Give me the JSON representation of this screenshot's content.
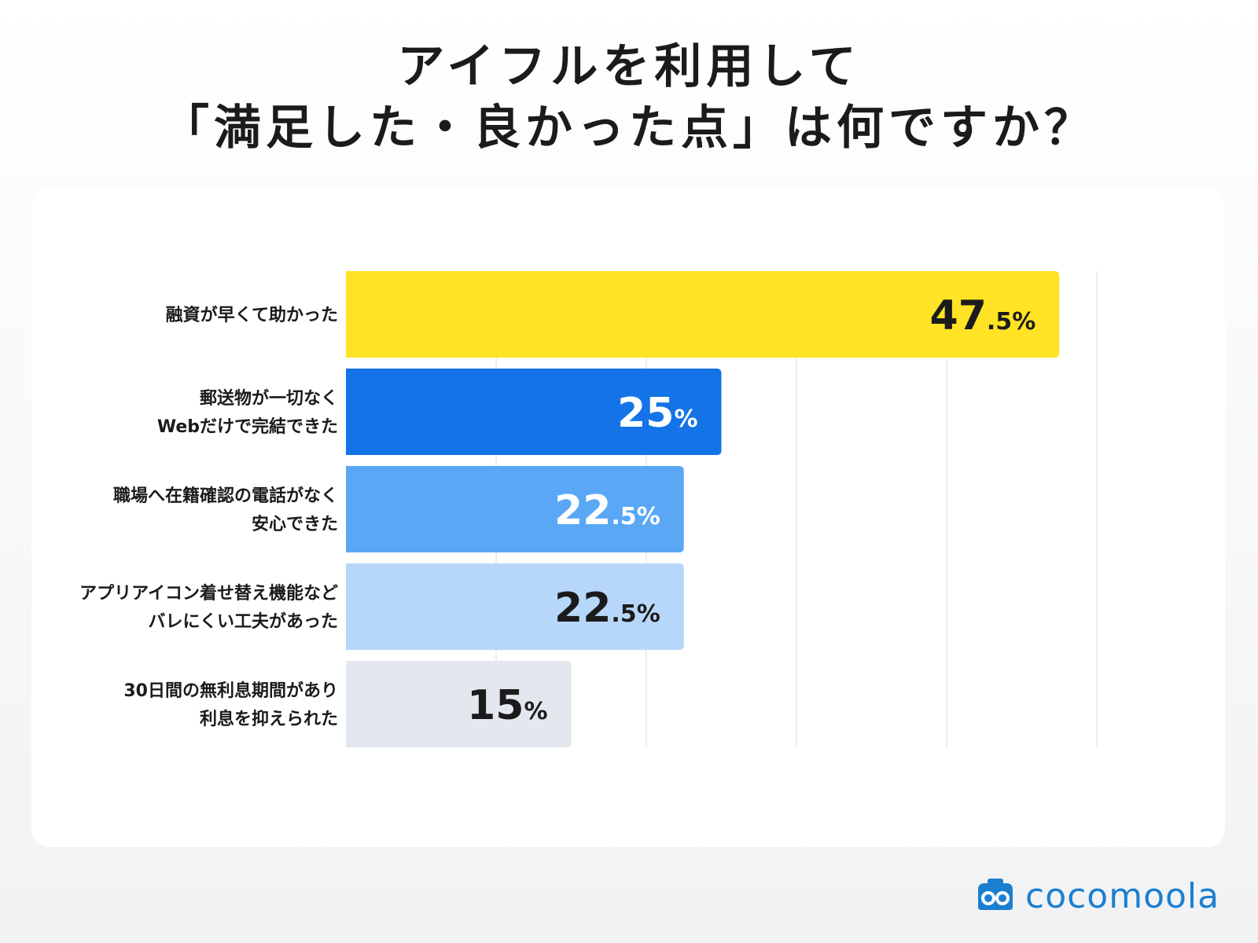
{
  "title": {
    "line1": "アイフルを利用して",
    "line2": "「満足した・良かった点」は何ですか？"
  },
  "chart_data": {
    "type": "bar",
    "orientation": "horizontal",
    "title": "アイフルを利用して「満足した・良かった点」は何ですか？",
    "xlim": [
      0,
      50
    ],
    "grid": true,
    "categories": [
      [
        "融資が早くて助かった"
      ],
      [
        "郵送物が一切なく",
        "Webだけで完結できた"
      ],
      [
        "職場へ在籍確認の電話がなく",
        "安心できた"
      ],
      [
        "アプリアイコン着せ替え機能など",
        "バレにくい工夫があった"
      ],
      [
        "30日間の無利息期間があり",
        "利息を抑えられた"
      ]
    ],
    "values": [
      47.5,
      25,
      22.5,
      22.5,
      15
    ],
    "value_labels": [
      {
        "main": "47",
        "frac": ".5",
        "unit": "%"
      },
      {
        "main": "25",
        "frac": "",
        "unit": "%"
      },
      {
        "main": "22",
        "frac": ".5",
        "unit": "%"
      },
      {
        "main": "22",
        "frac": ".5",
        "unit": "%"
      },
      {
        "main": "15",
        "frac": "",
        "unit": "%"
      }
    ],
    "bar_colors": [
      "#ffe324",
      "#1473e6",
      "#5aa8f5",
      "#b7d7fa",
      "#e3e7ee"
    ],
    "label_colors": [
      "#1b1b1b",
      "#ffffff",
      "#ffffff",
      "#1b1b1b",
      "#1b1b1b"
    ]
  },
  "logo": {
    "text": "cocomoola",
    "color": "#1b7fd1",
    "icon": "glasses-logo-icon"
  }
}
